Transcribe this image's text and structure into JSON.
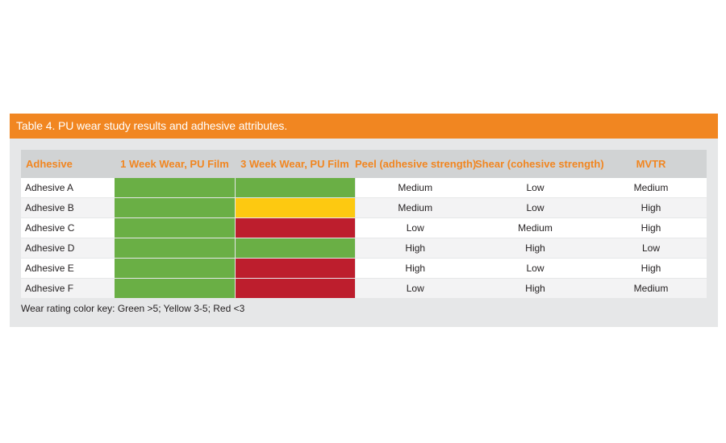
{
  "title": "Table 4. PU wear study results and adhesive attributes.",
  "colors": {
    "accent": "#f18621",
    "green": "#6aaf45",
    "yellow": "#fdc911",
    "red": "#bd1e2d",
    "panel": "#e6e7e8",
    "header_bg": "#d1d3d4"
  },
  "table": {
    "columns": [
      "Adhesive",
      "1 Week Wear, PU Film",
      "3 Week Wear, PU Film",
      "Peel (adhesive strength)",
      "Shear (cohesive strength)",
      "MVTR"
    ],
    "rows": [
      {
        "adhesive": "Adhesive A",
        "week1": "green",
        "week3": "green",
        "peel": "Medium",
        "shear": "Low",
        "mvtr": "Medium"
      },
      {
        "adhesive": "Adhesive B",
        "week1": "green",
        "week3": "yellow",
        "peel": "Medium",
        "shear": "Low",
        "mvtr": "High"
      },
      {
        "adhesive": "Adhesive C",
        "week1": "green",
        "week3": "red",
        "peel": "Low",
        "shear": "Medium",
        "mvtr": "High"
      },
      {
        "adhesive": "Adhesive D",
        "week1": "green",
        "week3": "green",
        "peel": "High",
        "shear": "High",
        "mvtr": "Low"
      },
      {
        "adhesive": "Adhesive E",
        "week1": "green",
        "week3": "red",
        "peel": "High",
        "shear": "Low",
        "mvtr": "High"
      },
      {
        "adhesive": "Adhesive F",
        "week1": "green",
        "week3": "red",
        "peel": "Low",
        "shear": "High",
        "mvtr": "Medium"
      }
    ]
  },
  "footnote": "Wear rating color key: Green >5; Yellow 3-5; Red <3"
}
